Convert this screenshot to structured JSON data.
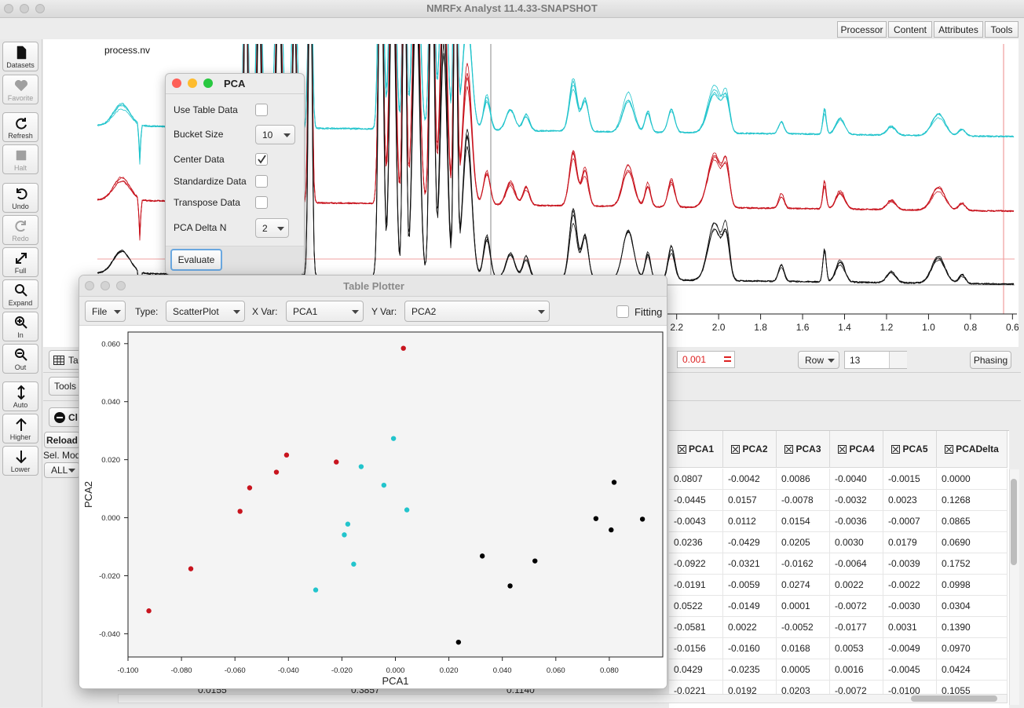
{
  "window": {
    "title": "NMRFx Analyst 11.4.33-SNAPSHOT"
  },
  "menu_tabs": [
    "Processor",
    "Content",
    "Attributes",
    "Tools"
  ],
  "toolbar": [
    "Datasets",
    "Favorite",
    "Refresh",
    "Halt",
    "Undo",
    "Redo",
    "Full",
    "Expand",
    "In",
    "Out",
    "Auto",
    "Higher",
    "Lower"
  ],
  "spectrum": {
    "dataset": "process.nv",
    "xlim": [
      4.96,
      0.59
    ],
    "xticks": [
      2.2,
      {
        "value": 2,
        "label": "2.0"
      },
      1.8,
      1.6,
      1.4,
      1.2,
      {
        "value": 1,
        "label": "1.0"
      },
      0.8,
      0.6
    ]
  },
  "controls": {
    "table_button": "Tab",
    "tools_button": "Tools",
    "clear_button": "Cl",
    "reload_button": "Reload",
    "sel_mode_label": "Sel. Mode",
    "sel_mode_value": "ALL",
    "threshold": "0.001",
    "row_mode": "Row",
    "row_value": "13",
    "phasing": "Phasing"
  },
  "table": {
    "columns": [
      "PCA1",
      "PCA2",
      "PCA3",
      "PCA4",
      "PCA5",
      "PCADelta"
    ],
    "rows": [
      [
        "0.0807",
        "-0.0042",
        "0.0086",
        "-0.0040",
        "-0.0015",
        "0.0000"
      ],
      [
        "-0.0445",
        "0.0157",
        "-0.0078",
        "-0.0032",
        "0.0023",
        "0.1268"
      ],
      [
        "-0.0043",
        "0.0112",
        "0.0154",
        "-0.0036",
        "-0.0007",
        "0.0865"
      ],
      [
        "0.0236",
        "-0.0429",
        "0.0205",
        "0.0030",
        "0.0179",
        "0.0690"
      ],
      [
        "-0.0922",
        "-0.0321",
        "-0.0162",
        "-0.0064",
        "-0.0039",
        "0.1752"
      ],
      [
        "-0.0191",
        "-0.0059",
        "0.0274",
        "0.0022",
        "-0.0022",
        "0.0998"
      ],
      [
        "0.0522",
        "-0.0149",
        "0.0001",
        "-0.0072",
        "-0.0030",
        "0.0304"
      ],
      [
        "-0.0581",
        "0.0022",
        "-0.0052",
        "-0.0177",
        "0.0031",
        "0.1390"
      ],
      [
        "-0.0156",
        "-0.0160",
        "0.0168",
        "0.0053",
        "-0.0049",
        "0.0970"
      ],
      [
        "0.0429",
        "-0.0235",
        "0.0005",
        "0.0016",
        "-0.0045",
        "0.0424"
      ],
      [
        "-0.0221",
        "0.0192",
        "0.0203",
        "-0.0072",
        "-0.0100",
        "0.1055"
      ]
    ],
    "footer": [
      "0.0155",
      "0.3857",
      "0.1140"
    ]
  },
  "pca_dialog": {
    "title": "PCA",
    "fields": [
      {
        "label": "Use Table Data",
        "checked": false
      },
      {
        "label": "Bucket Size",
        "value": "10"
      },
      {
        "label": "Center Data",
        "checked": true
      },
      {
        "label": "Standardize Data",
        "checked": false
      },
      {
        "label": "Transpose Data",
        "checked": false
      },
      {
        "label": "PCA Delta N",
        "value": "2"
      }
    ],
    "button": "Evaluate"
  },
  "table_plotter": {
    "title": "Table Plotter",
    "file_menu": "File",
    "type_label": "Type:",
    "type_value": "ScatterPlot",
    "x_label": "X Var:",
    "x_value": "PCA1",
    "y_label": "Y Var:",
    "y_value": "PCA2",
    "fitting_label": "Fitting",
    "fitting": false
  },
  "chart_data": {
    "type": "scatter",
    "x_label": "PCA1",
    "y_label": "PCA2",
    "xlim": [
      -0.1,
      0.1
    ],
    "ylim": [
      -0.048,
      0.064
    ],
    "xticks": [
      {
        "value": -0.1,
        "label": "-0.100"
      },
      {
        "value": -0.08,
        "label": "-0.080"
      },
      {
        "value": -0.06,
        "label": "-0.060"
      },
      {
        "value": -0.04,
        "label": "-0.040"
      },
      {
        "value": -0.02,
        "label": "-0.020"
      },
      {
        "value": 0,
        "label": "0.000"
      },
      {
        "value": 0.02,
        "label": "0.020"
      },
      {
        "value": 0.04,
        "label": "0.040"
      },
      {
        "value": 0.06,
        "label": "0.060"
      },
      {
        "value": 0.08,
        "label": "0.080"
      }
    ],
    "yticks": [
      {
        "value": -0.04,
        "label": "-0.040"
      },
      {
        "value": -0.02,
        "label": "-0.020"
      },
      {
        "value": 0,
        "label": "0.000"
      },
      {
        "value": 0.02,
        "label": "0.020"
      },
      {
        "value": 0.04,
        "label": "0.040"
      },
      {
        "value": 0.06,
        "label": "0.060"
      }
    ],
    "series": [
      {
        "color": "#c8141e",
        "x": [
          0.003,
          -0.0407,
          -0.0445,
          -0.0545,
          -0.0581,
          -0.0221,
          -0.0765,
          -0.0922
        ],
        "values": [
          0.0584,
          0.0216,
          0.0157,
          0.0103,
          0.0022,
          0.0192,
          -0.0176,
          -0.0321
        ]
      },
      {
        "color": "#22c4cc",
        "x": [
          -0.0007,
          -0.0128,
          -0.0043,
          0.0043,
          -0.0178,
          -0.0191,
          -0.0156,
          -0.0298
        ],
        "values": [
          0.0273,
          0.0176,
          0.0112,
          0.0027,
          -0.0022,
          -0.0059,
          -0.016,
          -0.0249
        ]
      },
      {
        "color": "#000000",
        "x": [
          0.0818,
          0.075,
          0.0807,
          0.0924,
          0.0325,
          0.0522,
          0.0429,
          0.0236
        ],
        "values": [
          0.0122,
          -0.0003,
          -0.0042,
          -0.0005,
          -0.0132,
          -0.0149,
          -0.0235,
          -0.0429
        ]
      }
    ]
  }
}
